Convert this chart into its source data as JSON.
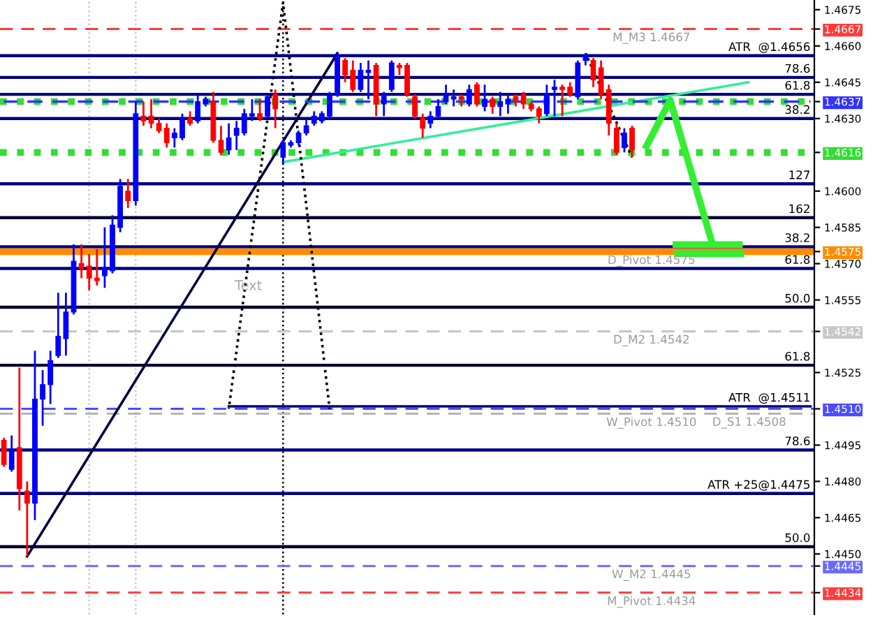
{
  "chart_data": {
    "type": "candlestick",
    "categories": [
      null,
      null,
      null,
      null,
      null,
      null,
      null,
      null,
      null,
      null,
      null,
      null,
      null,
      null,
      null,
      null,
      null,
      null,
      null,
      null,
      null,
      null,
      null,
      null,
      null,
      null,
      null,
      null,
      null,
      null,
      null,
      null,
      null,
      null,
      null,
      null,
      null,
      null,
      null,
      null,
      null,
      null,
      null,
      null,
      null,
      null,
      null,
      null,
      null,
      null,
      null,
      null,
      null,
      null,
      null,
      null,
      null,
      null,
      null,
      null,
      null,
      null,
      null,
      null,
      null,
      null,
      null,
      null,
      null,
      null,
      null,
      null,
      null,
      null,
      null,
      null,
      null,
      null,
      null,
      null,
      null,
      null,
      null,
      null,
      null,
      null,
      null,
      null,
      null,
      null,
      null,
      null,
      null,
      null,
      null,
      null,
      null,
      null,
      null,
      null,
      null,
      null,
      null,
      null,
      null
    ],
    "ohlc": [
      [
        1.4497,
        1.4498,
        1.4486,
        1.4487
      ],
      [
        1.4485,
        1.4499,
        1.4484,
        1.4493
      ],
      [
        1.4494,
        1.4527,
        1.4468,
        1.4477
      ],
      [
        1.4476,
        1.448,
        1.4449,
        1.4471
      ],
      [
        1.4471,
        1.4534,
        1.4464,
        1.4514
      ],
      [
        1.4514,
        1.4526,
        1.4503,
        1.452
      ],
      [
        1.452,
        1.4534,
        1.4512,
        1.453
      ],
      [
        1.4532,
        1.4558,
        1.4531,
        1.454
      ],
      [
        1.4539,
        1.4558,
        1.4532,
        1.455
      ],
      [
        1.455,
        1.4578,
        1.4549,
        1.4571
      ],
      [
        1.457,
        1.4578,
        1.4564,
        1.4568
      ],
      [
        1.4569,
        1.4574,
        1.4559,
        1.4564
      ],
      [
        1.4564,
        1.4576,
        1.4561,
        1.4563
      ],
      [
        1.4565,
        1.4585,
        1.456,
        1.4568
      ],
      [
        1.4567,
        1.459,
        1.4566,
        1.4586
      ],
      [
        1.4585,
        1.4605,
        1.4583,
        1.4602
      ],
      [
        1.46,
        1.4605,
        1.4593,
        1.4596
      ],
      [
        1.4596,
        1.4637,
        1.4594,
        1.4632
      ],
      [
        1.4631,
        1.4637,
        1.4627,
        1.4629
      ],
      [
        1.4631,
        1.4638,
        1.4626,
        1.4628
      ],
      [
        1.4628,
        1.463,
        1.4624,
        1.4625
      ],
      [
        1.4626,
        1.4628,
        1.4618,
        1.462
      ],
      [
        1.4622,
        1.4626,
        1.4618,
        1.4624
      ],
      [
        1.4622,
        1.4632,
        1.4621,
        1.463
      ],
      [
        1.463,
        1.4633,
        1.4627,
        1.4628
      ],
      [
        1.4629,
        1.464,
        1.4628,
        1.4637
      ],
      [
        1.4636,
        1.4639,
        1.4635,
        1.4638
      ],
      [
        1.4637,
        1.4641,
        1.462,
        1.4621
      ],
      [
        1.4621,
        1.4627,
        1.4615,
        1.4616
      ],
      [
        1.4617,
        1.4628,
        1.4615,
        1.4622
      ],
      [
        1.4623,
        1.4629,
        1.4617,
        1.4626
      ],
      [
        1.4624,
        1.4634,
        1.4623,
        1.4632
      ],
      [
        1.4631,
        1.4638,
        1.4629,
        1.4632
      ],
      [
        1.4632,
        1.4638,
        1.4629,
        1.463
      ],
      [
        1.4631,
        1.464,
        1.463,
        1.4639
      ],
      [
        1.464,
        1.4642,
        1.4626,
        1.4634
      ],
      [
        1.4614,
        1.4621,
        1.4611,
        1.462
      ],
      [
        1.4619,
        1.4621,
        1.4618,
        1.462
      ],
      [
        1.462,
        1.4625,
        1.4619,
        1.4624
      ],
      [
        1.4624,
        1.463,
        1.4623,
        1.4627
      ],
      [
        1.4628,
        1.4633,
        1.4627,
        1.4631
      ],
      [
        1.4629,
        1.4633,
        1.4628,
        1.4632
      ],
      [
        1.4631,
        1.4641,
        1.463,
        1.464
      ],
      [
        1.464,
        1.4657,
        1.4639,
        1.4656
      ],
      [
        1.4654,
        1.4655,
        1.4645,
        1.4648
      ],
      [
        1.465,
        1.4654,
        1.4641,
        1.4642
      ],
      [
        1.4642,
        1.4653,
        1.4641,
        1.465
      ],
      [
        1.4649,
        1.4654,
        1.4638,
        1.465
      ],
      [
        1.4652,
        1.4653,
        1.4631,
        1.4636
      ],
      [
        1.4636,
        1.4641,
        1.4631,
        1.464
      ],
      [
        1.4642,
        1.4654,
        1.4641,
        1.4653
      ],
      [
        1.4652,
        1.4653,
        1.4648,
        1.4651
      ],
      [
        1.4652,
        1.4653,
        1.4639,
        1.464
      ],
      [
        1.4639,
        1.464,
        1.463,
        1.4631
      ],
      [
        1.463,
        1.4632,
        1.4622,
        1.4626
      ],
      [
        1.4628,
        1.4633,
        1.4626,
        1.4631
      ],
      [
        1.4631,
        1.4638,
        1.463,
        1.4635
      ],
      [
        1.4637,
        1.4644,
        1.4636,
        1.464
      ],
      [
        1.4638,
        1.4642,
        1.4635,
        1.4639
      ],
      [
        1.4639,
        1.464,
        1.4635,
        1.4638
      ],
      [
        1.4636,
        1.4644,
        1.4635,
        1.4642
      ],
      [
        1.4644,
        1.4645,
        1.4635,
        1.4636
      ],
      [
        1.4635,
        1.4644,
        1.4633,
        1.4638
      ],
      [
        1.4638,
        1.4639,
        1.4632,
        1.4635
      ],
      [
        1.4635,
        1.4641,
        1.4631,
        1.4637
      ],
      [
        1.4636,
        1.464,
        1.4632,
        1.4638
      ],
      [
        1.4639,
        1.464,
        1.4635,
        1.4637
      ],
      [
        1.464,
        1.4641,
        1.4634,
        1.4636
      ],
      [
        1.4636,
        1.4637,
        1.4633,
        1.4634
      ],
      [
        1.4634,
        1.4635,
        1.4628,
        1.4631
      ],
      [
        1.4632,
        1.4644,
        1.4631,
        1.464
      ],
      [
        1.4642,
        1.4646,
        1.4631,
        1.4643
      ],
      [
        1.4643,
        1.4644,
        1.4631,
        1.4642
      ],
      [
        1.4643,
        1.4645,
        1.4639,
        1.464
      ],
      [
        1.4639,
        1.4654,
        1.4638,
        1.4653
      ],
      [
        1.4654,
        1.4657,
        1.4652,
        1.4656
      ],
      [
        1.4654,
        1.4655,
        1.4643,
        1.4646
      ],
      [
        1.4651,
        1.4654,
        1.4638,
        1.464
      ],
      [
        1.4642,
        1.4644,
        1.4623,
        1.4628
      ],
      [
        1.4626,
        1.4628,
        1.4615,
        1.4616
      ],
      [
        1.4618,
        1.4626,
        1.4616,
        1.4624
      ],
      [
        1.4626,
        1.4627,
        1.4614,
        1.4617
      ],
      null,
      null,
      null,
      null,
      null,
      null,
      null,
      null,
      null,
      null,
      null,
      null,
      null,
      null,
      null,
      null,
      null,
      null,
      null,
      null,
      null,
      null,
      null
    ],
    "colors": [
      "#ff0000",
      "#0000ff",
      "#ff0000",
      "#ff0000",
      "#0000ff",
      "#0000ff",
      "#0000ff",
      "#0000ff",
      "#0000ff",
      "#0000ff",
      "#ff0000",
      "#ff0000",
      "#ff0000",
      "#0000ff",
      "#0000ff",
      "#0000ff",
      "#ff0000",
      "#0000ff",
      "#ff0000",
      "#ff0000",
      "#ff0000",
      "#ff0000",
      "#0000ff",
      "#0000ff",
      "#ff0000",
      "#0000ff",
      "#0000ff",
      "#ff0000",
      "#ff0000",
      "#0000ff",
      "#0000ff",
      "#0000ff",
      "#0000ff",
      "#ff0000",
      "#0000ff",
      "#ff0000",
      "#0000ff",
      "#0000ff",
      "#0000ff",
      "#0000ff",
      "#0000ff",
      "#0000ff",
      "#0000ff",
      "#0000ff",
      "#ff0000",
      "#ff0000",
      "#0000ff",
      "#0000ff",
      "#ff0000",
      "#0000ff",
      "#0000ff",
      "#ff0000",
      "#ff0000",
      "#ff0000",
      "#ff0000",
      "#0000ff",
      "#0000ff",
      "#0000ff",
      "#0000ff",
      "#ff0000",
      "#0000ff",
      "#ff0000",
      "#0000ff",
      "#ff0000",
      "#0000ff",
      "#0000ff",
      "#ff0000",
      "#ff0000",
      "#ff0000",
      "#ff0000",
      "#0000ff",
      "#0000ff",
      "#ff0000",
      "#ff0000",
      "#0000ff",
      "#0000ff",
      "#ff0000",
      "#ff0000",
      "#ff0000",
      "#ff0000",
      "#0000ff",
      "#ff0000",
      null,
      null,
      null,
      null,
      null,
      null,
      null,
      null,
      null,
      null,
      null,
      null,
      null,
      null,
      null,
      null,
      null,
      null,
      null,
      null,
      null,
      null,
      null
    ],
    "series": [
      {
        "type": "line",
        "color": "#000040",
        "line_style": "solid",
        "values": [
          null,
          null,
          null,
          1.4449,
          null,
          null,
          null,
          null,
          null,
          null,
          null,
          null,
          null,
          null,
          null,
          null,
          null,
          null,
          null,
          null,
          null,
          null,
          null,
          null,
          null,
          null,
          null,
          null,
          null,
          null,
          null,
          null,
          null,
          null,
          null,
          null,
          null,
          null,
          null,
          null,
          null,
          null,
          null,
          1.4657,
          null,
          null,
          null,
          null,
          null,
          null,
          null,
          null,
          null,
          null,
          null,
          null,
          null,
          null,
          null,
          null,
          null,
          null,
          null,
          null,
          null,
          null,
          null,
          null,
          null,
          null,
          null,
          null,
          null,
          null,
          null,
          null,
          null,
          null,
          null,
          null,
          null,
          null,
          null,
          null,
          null,
          null,
          null,
          null,
          null,
          null,
          null,
          null,
          null,
          null,
          null,
          null,
          null,
          null,
          null,
          null,
          null,
          null,
          null,
          null,
          null
        ]
      },
      {
        "type": "line",
        "color": "#33ee99",
        "line_style": "solid",
        "values": [
          null,
          null,
          null,
          null,
          null,
          null,
          null,
          null,
          null,
          null,
          null,
          null,
          null,
          null,
          null,
          null,
          null,
          null,
          null,
          null,
          null,
          null,
          null,
          null,
          null,
          null,
          null,
          null,
          null,
          null,
          null,
          null,
          null,
          null,
          null,
          null,
          1.4612,
          null,
          null,
          null,
          null,
          null,
          null,
          null,
          null,
          null,
          null,
          null,
          null,
          null,
          null,
          null,
          null,
          null,
          null,
          null,
          null,
          null,
          null,
          null,
          null,
          null,
          null,
          null,
          null,
          null,
          null,
          null,
          null,
          null,
          null,
          null,
          null,
          null,
          null,
          null,
          null,
          null,
          null,
          null,
          null,
          null,
          null,
          null,
          null,
          null,
          null,
          null,
          null,
          null,
          null,
          null,
          null,
          null,
          null,
          null,
          1.4645,
          null,
          null,
          null,
          null,
          null,
          null,
          null,
          null
        ]
      },
      {
        "type": "line",
        "color": "#000000",
        "line_style": "dotted",
        "values": [
          null,
          null,
          null,
          null,
          null,
          null,
          null,
          null,
          null,
          null,
          null,
          null,
          null,
          null,
          null,
          null,
          null,
          null,
          null,
          null,
          null,
          null,
          null,
          null,
          null,
          null,
          null,
          null,
          null,
          null,
          null,
          null,
          null,
          null,
          null,
          null,
          null,
          null,
          null,
          null,
          null,
          null,
          null,
          null,
          null,
          null,
          null,
          null,
          null,
          null,
          null,
          null,
          null,
          null,
          null,
          null,
          null,
          null,
          null,
          null,
          null,
          null,
          null,
          null,
          null,
          null,
          null,
          null,
          null,
          null,
          null,
          null,
          null,
          null,
          null,
          1.4657,
          null,
          null,
          null,
          null,
          null,
          1.4614,
          null,
          null,
          null,
          null,
          null,
          null,
          null,
          null,
          null,
          null,
          null,
          null,
          null,
          null,
          null,
          null,
          null,
          null,
          null,
          null,
          null,
          null,
          null
        ]
      },
      {
        "type": "line",
        "color": "#000000",
        "line_style": "dotted",
        "values": [
          null,
          null,
          null,
          null,
          null,
          null,
          null,
          null,
          null,
          null,
          null,
          null,
          null,
          null,
          null,
          null,
          null,
          null,
          null,
          null,
          null,
          null,
          null,
          null,
          null,
          null,
          null,
          null,
          null,
          1.451,
          null,
          null,
          null,
          null,
          null,
          null,
          1.4678,
          null,
          null,
          null,
          null,
          null,
          1.451,
          null,
          null,
          null,
          null,
          null,
          null,
          null,
          null,
          null,
          null,
          null,
          null,
          null,
          null,
          null,
          null,
          null,
          null,
          null,
          null,
          null,
          null,
          null,
          null,
          null,
          null,
          null,
          null,
          null,
          null,
          null,
          null,
          null,
          null,
          null,
          null,
          null,
          null,
          null,
          null,
          null,
          null,
          null,
          null,
          null,
          null,
          null,
          null,
          null,
          null,
          null,
          null,
          null,
          null,
          null,
          null,
          null,
          null,
          null,
          null,
          null,
          null
        ]
      },
      {
        "type": "line",
        "color": "#3333ff",
        "line_style": "dashed",
        "values": [
          1.4637,
          null,
          null,
          null,
          null,
          null,
          null,
          null,
          null,
          null,
          null,
          null,
          null,
          null,
          null,
          null,
          null,
          null,
          null,
          null,
          null,
          null,
          null,
          null,
          null,
          null,
          null,
          null,
          null,
          null,
          null,
          null,
          null,
          null,
          null,
          null,
          null,
          null,
          null,
          null,
          null,
          null,
          null,
          null,
          null,
          null,
          null,
          null,
          null,
          null,
          null,
          null,
          null,
          null,
          null,
          null,
          null,
          null,
          null,
          null,
          null,
          null,
          null,
          null,
          null,
          null,
          null,
          null,
          null,
          null,
          null,
          null,
          null,
          null,
          null,
          null,
          null,
          null,
          null,
          null,
          null,
          null,
          null,
          null,
          null,
          null,
          null,
          null,
          null,
          null,
          null,
          null,
          null,
          null,
          null,
          null,
          null,
          null,
          null,
          null,
          null,
          null,
          null,
          null,
          1.4637
        ]
      },
      {
        "type": "line",
        "color": "#000080",
        "line_style": "solid",
        "values": [
          null,
          null,
          null,
          null,
          null,
          null,
          null,
          null,
          null,
          null,
          null,
          null,
          null,
          null,
          null,
          null,
          null,
          null,
          null,
          null,
          null,
          null,
          null,
          null,
          null,
          null,
          null,
          null,
          null,
          1.4511,
          null,
          null,
          null,
          null,
          null,
          null,
          null,
          null,
          null,
          null,
          null,
          null,
          null,
          null,
          null,
          null,
          null,
          null,
          null,
          null,
          null,
          null,
          null,
          null,
          null,
          null,
          null,
          null,
          null,
          null,
          null,
          null,
          null,
          null,
          null,
          null,
          null,
          null,
          null,
          null,
          null,
          null,
          null,
          null,
          null,
          null,
          null,
          null,
          null,
          null,
          null,
          null,
          null,
          null,
          null,
          null,
          null,
          null,
          null,
          null,
          null,
          null,
          null,
          null,
          null,
          null,
          null,
          null,
          null,
          null,
          null,
          null,
          null,
          null,
          1.4511
        ]
      }
    ],
    "ref_lines": [
      {
        "axis": "y",
        "value": 1.4667,
        "label": "M_M3 1.4667",
        "color": "#ff3b3b",
        "line_style": "dashed"
      },
      {
        "axis": "y",
        "value": 1.4656,
        "color": "#000080",
        "line_style": "solid"
      },
      {
        "axis": "y",
        "value": 1.4647,
        "color": "#000080",
        "line_style": "solid"
      },
      {
        "axis": "y",
        "value": 1.464,
        "color": "#000080",
        "line_style": "solid"
      },
      {
        "axis": "y",
        "value": 1.4637,
        "color": "#33dd33",
        "line_style": "dotted"
      },
      {
        "axis": "y",
        "value": 1.463,
        "color": "#000080",
        "line_style": "solid"
      },
      {
        "axis": "y",
        "value": 1.4616,
        "color": "#33dd33",
        "line_style": "dotted"
      },
      {
        "axis": "y",
        "value": 1.4603,
        "color": "#000080",
        "line_style": "solid"
      },
      {
        "axis": "y",
        "value": 1.4589,
        "color": "#000030",
        "line_style": "solid"
      },
      {
        "axis": "y",
        "value": 1.4577,
        "color": "#000080",
        "line_style": "solid"
      },
      {
        "axis": "y",
        "value": 1.4575,
        "label": "D_Pivot 1.4575",
        "color": "#ff8c00",
        "line_style": "solid"
      },
      {
        "axis": "y",
        "value": 1.4568,
        "color": "#000080",
        "line_style": "solid"
      },
      {
        "axis": "y",
        "value": 1.4552,
        "color": "#000030",
        "line_style": "solid"
      },
      {
        "axis": "y",
        "value": 1.4542,
        "label": "D_M2 1.4542",
        "color": "#c8c8c8",
        "line_style": "dashed"
      },
      {
        "axis": "y",
        "value": 1.4528,
        "color": "#000030",
        "line_style": "solid"
      },
      {
        "axis": "y",
        "value": 1.451,
        "label": "W_Pivot 1.4510",
        "color": "#4b4bff",
        "line_style": "dashed"
      },
      {
        "axis": "y",
        "value": 1.4508,
        "label": "D_S1 1.4508",
        "color": "#b4b4b4",
        "line_style": "dashed"
      },
      {
        "axis": "y",
        "value": 1.4493,
        "color": "#000080",
        "line_style": "solid"
      },
      {
        "axis": "y",
        "value": 1.4475,
        "color": "#000080",
        "line_style": "solid"
      },
      {
        "axis": "y",
        "value": 1.4453,
        "color": "#000030",
        "line_style": "solid"
      },
      {
        "axis": "y",
        "value": 1.4445,
        "label": "W_M2 1.4445",
        "color": "#6a6aff",
        "line_style": "dashed"
      },
      {
        "axis": "y",
        "value": 1.4434,
        "label": "M_Pivot 1.4434",
        "color": "#ff3b3b",
        "line_style": "dashed"
      }
    ],
    "annotations": [
      {
        "text": "ATR  @1.4656",
        "y": 1.4656
      },
      {
        "text": "78.6",
        "y": 1.4647
      },
      {
        "text": "61.8",
        "y": 1.464
      },
      {
        "text": "38.2",
        "y": 1.463
      },
      {
        "text": "127",
        "y": 1.4603
      },
      {
        "text": "162",
        "y": 1.4589
      },
      {
        "text": "38.2",
        "y": 1.4577
      },
      {
        "text": "61.8",
        "y": 1.4568
      },
      {
        "text": "50.0",
        "y": 1.4552
      },
      {
        "text": "61.8",
        "y": 1.4528
      },
      {
        "text": "ATR  @1.4511",
        "y": 1.4511
      },
      {
        "text": "78.6",
        "y": 1.4493
      },
      {
        "text": "ATR +25@1.4475",
        "y": 1.4475
      },
      {
        "text": "50.0",
        "y": 1.4453
      },
      "Text"
    ],
    "ylim": [
      1.4425,
      1.4679
    ],
    "yticks": [
      {
        "value": 1.4675,
        "label": "1.4675"
      },
      {
        "value": 1.4667,
        "label": "1.4667"
      },
      {
        "value": 1.466,
        "label": "1.4660"
      },
      {
        "value": 1.4645,
        "label": "1.4645"
      },
      {
        "value": 1.4637,
        "label": "1.4637"
      },
      {
        "value": 1.463,
        "label": "1.4630"
      },
      {
        "value": 1.4616,
        "label": "1.4616"
      },
      {
        "value": 1.46,
        "label": "1.4600"
      },
      {
        "value": 1.4585,
        "label": "1.4585"
      },
      {
        "value": 1.4575,
        "label": "1.4575"
      },
      {
        "value": 1.457,
        "label": "1.4570"
      },
      {
        "value": 1.4555,
        "label": "1.4555"
      },
      {
        "value": 1.4542,
        "label": "1.4542"
      },
      {
        "value": 1.4525,
        "label": "1.4525"
      },
      {
        "value": 1.451,
        "label": "1.4510"
      },
      {
        "value": 1.4495,
        "label": "1.4495"
      },
      {
        "value": 1.448,
        "label": "1.4480"
      },
      {
        "value": 1.4465,
        "label": "1.4465"
      },
      {
        "value": 1.445,
        "label": "1.4450"
      },
      {
        "value": 1.4445,
        "label": "1.4445"
      },
      {
        "value": 1.4434,
        "label": "1.4434"
      }
    ],
    "tick_labels": "y"
  }
}
